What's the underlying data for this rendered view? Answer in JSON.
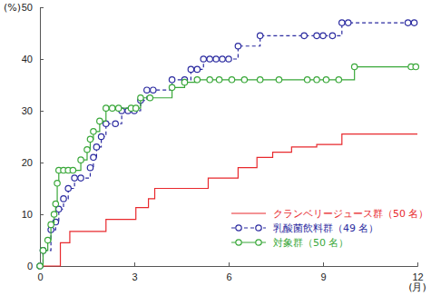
{
  "chart_data": {
    "type": "line",
    "xlabel": "(月)",
    "ylabel": "(%)",
    "xlim": [
      0,
      12
    ],
    "xticks": [
      0,
      3,
      6,
      9,
      12
    ],
    "ylim": [
      0,
      50
    ],
    "yticks": [
      0,
      10,
      20,
      30,
      40,
      50
    ],
    "grid": false,
    "legend": "lower right",
    "series": [
      {
        "name": "クランベリージュース群（50 名）",
        "color": "#e8292d",
        "line_style": "solid",
        "marker": "none",
        "x": [
          0,
          0.65,
          0.95,
          2.1,
          3.05,
          3.45,
          3.65,
          5.35,
          6.3,
          6.9,
          7.4,
          8.0,
          8.8,
          9.6,
          12
        ],
        "values": [
          0,
          4.5,
          6.7,
          9,
          11.3,
          13,
          15,
          17,
          19,
          21,
          22,
          23,
          23.5,
          25.5,
          25.5
        ]
      },
      {
        "name": "乳酸菌飲料群（49 名）",
        "color": "#2b2ba0",
        "line_style": "dashed",
        "marker": "circle",
        "x": [
          0,
          0.1,
          0.35,
          0.5,
          0.6,
          0.75,
          0.9,
          1.1,
          1.3,
          1.6,
          1.7,
          1.8,
          1.95,
          2.1,
          2.4,
          2.6,
          2.8,
          3.0,
          3.2,
          3.4,
          3.6,
          4.2,
          4.6,
          4.8,
          5.0,
          5.2,
          5.4,
          5.6,
          5.8,
          6.0,
          6.3,
          7.0,
          8.4,
          8.8,
          9.0,
          9.3,
          9.6,
          9.8,
          11.7,
          11.9
        ],
        "values": [
          0,
          3,
          7,
          8.5,
          11,
          13,
          15,
          17,
          17,
          19,
          21,
          23,
          25,
          27.5,
          27.5,
          30,
          30,
          30,
          32,
          34,
          34,
          36,
          36,
          38,
          38,
          40,
          40,
          40,
          40,
          40,
          42.5,
          44.5,
          44.5,
          44.5,
          44.5,
          44.5,
          47,
          47,
          47,
          47
        ]
      },
      {
        "name": "対象群（50 名）",
        "color": "#3aa83a",
        "line_style": "solid",
        "marker": "circle",
        "x": [
          0,
          0.1,
          0.25,
          0.35,
          0.45,
          0.5,
          0.55,
          0.6,
          0.75,
          0.9,
          1.05,
          1.3,
          1.5,
          1.6,
          1.7,
          1.9,
          2.1,
          2.3,
          2.5,
          2.9,
          3.05,
          3.2,
          3.5,
          4.2,
          4.6,
          5.0,
          5.4,
          5.7,
          6.1,
          6.5,
          7.0,
          7.6,
          8.5,
          8.8,
          9.1,
          9.5,
          10.0,
          11.8,
          11.95
        ],
        "values": [
          0,
          3,
          5,
          8,
          10,
          12,
          16,
          18.5,
          18.5,
          18.5,
          18.5,
          20.5,
          22.5,
          24.5,
          26,
          28,
          30.5,
          30.5,
          30.5,
          30.5,
          30.5,
          32.5,
          32.5,
          34.5,
          35.5,
          36,
          36,
          36,
          36,
          36,
          36,
          36,
          36,
          36,
          36,
          36,
          38.5,
          38.5,
          38.5
        ]
      }
    ]
  }
}
